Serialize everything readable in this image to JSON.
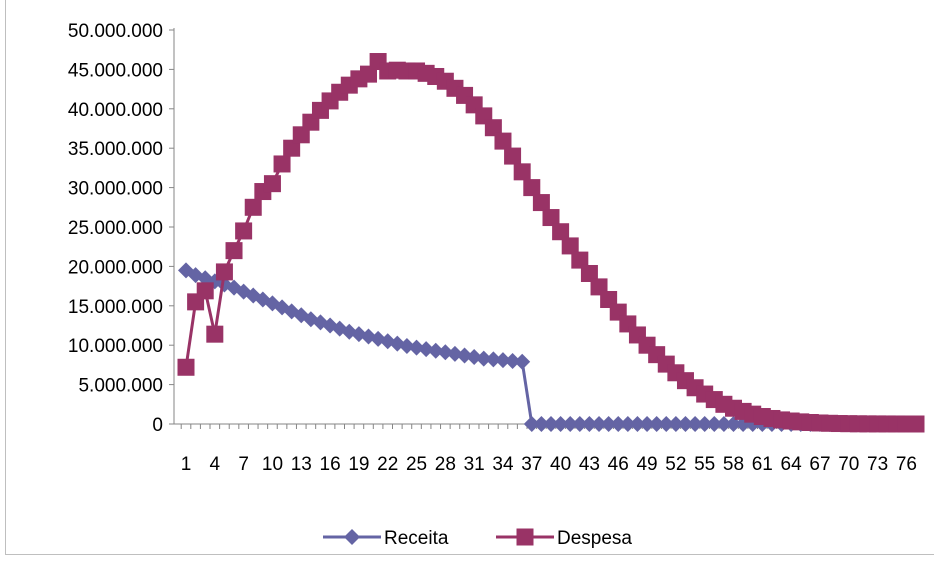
{
  "chart_data": {
    "type": "line",
    "title": "",
    "xlabel": "",
    "ylabel": "",
    "ylim": [
      0,
      50000000
    ],
    "yticks": [
      0,
      5000000,
      10000000,
      15000000,
      20000000,
      25000000,
      30000000,
      35000000,
      40000000,
      45000000,
      50000000
    ],
    "ytick_labels": [
      "0",
      "5.000.000",
      "10.000.000",
      "15.000.000",
      "20.000.000",
      "25.000.000",
      "30.000.000",
      "35.000.000",
      "40.000.000",
      "45.000.000",
      "50.000.000"
    ],
    "x": [
      1,
      2,
      3,
      4,
      5,
      6,
      7,
      8,
      9,
      10,
      11,
      12,
      13,
      14,
      15,
      16,
      17,
      18,
      19,
      20,
      21,
      22,
      23,
      24,
      25,
      26,
      27,
      28,
      29,
      30,
      31,
      32,
      33,
      34,
      35,
      36,
      37,
      38,
      39,
      40,
      41,
      42,
      43,
      44,
      45,
      46,
      47,
      48,
      49,
      50,
      51,
      52,
      53,
      54,
      55,
      56,
      57,
      58,
      59,
      60,
      61,
      62,
      63,
      64,
      65,
      66,
      67,
      68,
      69,
      70,
      71,
      72,
      73,
      74,
      75,
      76,
      77
    ],
    "xtick_labels": [
      "1",
      "4",
      "7",
      "10",
      "13",
      "16",
      "19",
      "22",
      "25",
      "28",
      "31",
      "34",
      "37",
      "40",
      "43",
      "46",
      "49",
      "52",
      "55",
      "58",
      "61",
      "64",
      "67",
      "70",
      "73",
      "76"
    ],
    "xtick_label_text": [
      "1",
      "4",
      "7",
      "1013",
      "16",
      "192225",
      "28",
      "3134",
      "37",
      "40",
      "4346",
      "49",
      "5255",
      "58",
      "61",
      "6467",
      "70",
      "73",
      "76"
    ],
    "grid": false,
    "legend_position": "bottom",
    "series": [
      {
        "name": "Receita",
        "color": "#6464a4",
        "marker": "diamond",
        "values": [
          19500000,
          18900000,
          18500000,
          18100000,
          17700000,
          17300000,
          16800000,
          16300000,
          15800000,
          15300000,
          14800000,
          14300000,
          13800000,
          13300000,
          12900000,
          12500000,
          12100000,
          11700000,
          11400000,
          11100000,
          10800000,
          10500000,
          10200000,
          9900000,
          9700000,
          9500000,
          9300000,
          9100000,
          8900000,
          8700000,
          8500000,
          8300000,
          8200000,
          8100000,
          8000000,
          7900000,
          0,
          0,
          0,
          0,
          0,
          0,
          0,
          0,
          0,
          0,
          0,
          0,
          0,
          0,
          0,
          0,
          0,
          0,
          0,
          0,
          0,
          0,
          0,
          0,
          0,
          0,
          0,
          0,
          0,
          0,
          0,
          0,
          0,
          0,
          0,
          0,
          0,
          0,
          0,
          0,
          0
        ]
      },
      {
        "name": "Despesa",
        "color": "#993366",
        "marker": "square",
        "values": [
          7200000,
          15500000,
          16900000,
          11400000,
          19300000,
          22000000,
          24500000,
          27500000,
          29500000,
          30500000,
          33000000,
          35000000,
          36700000,
          38300000,
          39800000,
          41000000,
          42100000,
          43000000,
          43800000,
          44400000,
          46000000,
          44800000,
          44900000,
          44800000,
          44800000,
          44500000,
          44100000,
          43500000,
          42600000,
          41700000,
          40500000,
          39100000,
          37600000,
          35900000,
          34000000,
          32000000,
          30000000,
          28100000,
          26200000,
          24400000,
          22600000,
          20800000,
          19100000,
          17400000,
          15800000,
          14200000,
          12700000,
          11300000,
          10000000,
          8800000,
          7600000,
          6500000,
          5500000,
          4600000,
          3800000,
          3100000,
          2500000,
          2000000,
          1600000,
          1250000,
          950000,
          700000,
          520000,
          380000,
          270000,
          190000,
          130000,
          90000,
          60000,
          40000,
          25000,
          15000,
          10000,
          6000,
          3000,
          1000,
          0
        ]
      }
    ]
  }
}
